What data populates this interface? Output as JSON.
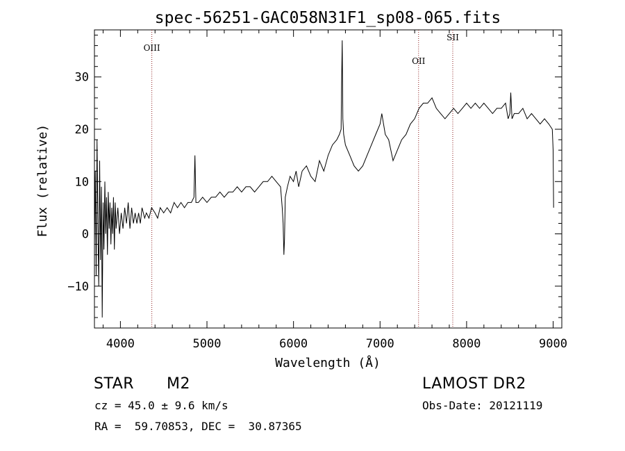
{
  "chart_data": {
    "type": "line",
    "title": "spec-56251-GAC058N31F1_sp08-065.fits",
    "xlabel": "Wavelength (Å)",
    "ylabel": "Flux (relative)",
    "xlim": [
      3700,
      9100
    ],
    "ylim": [
      -18,
      39
    ],
    "xticks": [
      4000,
      5000,
      6000,
      7000,
      8000,
      9000
    ],
    "yticks": [
      -10,
      0,
      10,
      20,
      30
    ],
    "ytick_labels": [
      "−10",
      "0",
      "10",
      "20",
      "30"
    ],
    "grid": false,
    "line_color": "#000000",
    "marker_color": "#8b1a1a",
    "series": [
      {
        "values": [
          [
            3700,
            -2
          ],
          [
            3710,
            12
          ],
          [
            3720,
            -8
          ],
          [
            3730,
            18
          ],
          [
            3740,
            2
          ],
          [
            3750,
            -10
          ],
          [
            3760,
            14
          ],
          [
            3770,
            -5
          ],
          [
            3780,
            9
          ],
          [
            3790,
            -16
          ],
          [
            3800,
            6
          ],
          [
            3810,
            -3
          ],
          [
            3820,
            10
          ],
          [
            3830,
            0
          ],
          [
            3840,
            7
          ],
          [
            3850,
            -4
          ],
          [
            3860,
            8
          ],
          [
            3870,
            1
          ],
          [
            3880,
            6
          ],
          [
            3890,
            -2
          ],
          [
            3900,
            5
          ],
          [
            3910,
            0
          ],
          [
            3920,
            7
          ],
          [
            3930,
            -3
          ],
          [
            3940,
            6
          ],
          [
            3950,
            1
          ],
          [
            3970,
            5
          ],
          [
            3990,
            0
          ],
          [
            4010,
            4
          ],
          [
            4030,
            1
          ],
          [
            4050,
            5
          ],
          [
            4070,
            2
          ],
          [
            4090,
            6
          ],
          [
            4110,
            1
          ],
          [
            4130,
            5
          ],
          [
            4150,
            2
          ],
          [
            4170,
            4
          ],
          [
            4190,
            2
          ],
          [
            4210,
            4
          ],
          [
            4230,
            2
          ],
          [
            4250,
            5
          ],
          [
            4280,
            3
          ],
          [
            4300,
            4
          ],
          [
            4330,
            3
          ],
          [
            4360,
            5
          ],
          [
            4400,
            4
          ],
          [
            4430,
            3
          ],
          [
            4460,
            5
          ],
          [
            4500,
            4
          ],
          [
            4540,
            5
          ],
          [
            4580,
            4
          ],
          [
            4620,
            6
          ],
          [
            4660,
            5
          ],
          [
            4700,
            6
          ],
          [
            4740,
            5
          ],
          [
            4780,
            6
          ],
          [
            4820,
            6
          ],
          [
            4850,
            7
          ],
          [
            4861,
            15
          ],
          [
            4872,
            6
          ],
          [
            4900,
            6
          ],
          [
            4950,
            7
          ],
          [
            5000,
            6
          ],
          [
            5050,
            7
          ],
          [
            5100,
            7
          ],
          [
            5150,
            8
          ],
          [
            5200,
            7
          ],
          [
            5250,
            8
          ],
          [
            5300,
            8
          ],
          [
            5350,
            9
          ],
          [
            5400,
            8
          ],
          [
            5450,
            9
          ],
          [
            5500,
            9
          ],
          [
            5550,
            8
          ],
          [
            5600,
            9
          ],
          [
            5650,
            10
          ],
          [
            5700,
            10
          ],
          [
            5750,
            11
          ],
          [
            5800,
            10
          ],
          [
            5850,
            9
          ],
          [
            5870,
            5
          ],
          [
            5880,
            2
          ],
          [
            5889,
            -4
          ],
          [
            5896,
            -1
          ],
          [
            5905,
            7
          ],
          [
            5930,
            9
          ],
          [
            5960,
            11
          ],
          [
            6000,
            10
          ],
          [
            6030,
            12
          ],
          [
            6060,
            9
          ],
          [
            6100,
            12
          ],
          [
            6150,
            13
          ],
          [
            6200,
            11
          ],
          [
            6250,
            10
          ],
          [
            6300,
            14
          ],
          [
            6350,
            12
          ],
          [
            6400,
            15
          ],
          [
            6450,
            17
          ],
          [
            6500,
            18
          ],
          [
            6530,
            19
          ],
          [
            6550,
            20
          ],
          [
            6555,
            28
          ],
          [
            6563,
            37
          ],
          [
            6570,
            22
          ],
          [
            6580,
            19
          ],
          [
            6600,
            17
          ],
          [
            6650,
            15
          ],
          [
            6700,
            13
          ],
          [
            6750,
            12
          ],
          [
            6800,
            13
          ],
          [
            6850,
            15
          ],
          [
            6900,
            17
          ],
          [
            6950,
            19
          ],
          [
            7000,
            21
          ],
          [
            7020,
            23
          ],
          [
            7060,
            19
          ],
          [
            7100,
            18
          ],
          [
            7150,
            14
          ],
          [
            7200,
            16
          ],
          [
            7250,
            18
          ],
          [
            7300,
            19
          ],
          [
            7350,
            21
          ],
          [
            7400,
            22
          ],
          [
            7450,
            24
          ],
          [
            7500,
            25
          ],
          [
            7550,
            25
          ],
          [
            7600,
            26
          ],
          [
            7650,
            24
          ],
          [
            7700,
            23
          ],
          [
            7750,
            22
          ],
          [
            7800,
            23
          ],
          [
            7850,
            24
          ],
          [
            7900,
            23
          ],
          [
            7950,
            24
          ],
          [
            8000,
            25
          ],
          [
            8050,
            24
          ],
          [
            8100,
            25
          ],
          [
            8150,
            24
          ],
          [
            8200,
            25
          ],
          [
            8250,
            24
          ],
          [
            8300,
            23
          ],
          [
            8350,
            24
          ],
          [
            8400,
            24
          ],
          [
            8450,
            25
          ],
          [
            8480,
            22
          ],
          [
            8500,
            23
          ],
          [
            8510,
            27
          ],
          [
            8525,
            22
          ],
          [
            8550,
            23
          ],
          [
            8600,
            23
          ],
          [
            8650,
            24
          ],
          [
            8700,
            22
          ],
          [
            8750,
            23
          ],
          [
            8800,
            22
          ],
          [
            8850,
            21
          ],
          [
            8900,
            22
          ],
          [
            8950,
            21
          ],
          [
            8990,
            20
          ],
          [
            9000,
            16
          ],
          [
            9005,
            5
          ]
        ]
      }
    ],
    "annotations": [
      {
        "label": "OIII",
        "x": 4363,
        "text_y": 35
      },
      {
        "label": "OII",
        "x": 7445,
        "text_y": 32.5
      },
      {
        "label": "SII",
        "x": 7840,
        "text_y": 37
      }
    ]
  },
  "footer": {
    "object_class": "STAR",
    "subclass": "M2",
    "survey": "LAMOST DR2",
    "redshift": "cz = 45.0 ± 9.6 km/s",
    "obs_date": "Obs-Date: 20121119",
    "coords": "RA =  59.70853, DEC =  30.87365"
  }
}
